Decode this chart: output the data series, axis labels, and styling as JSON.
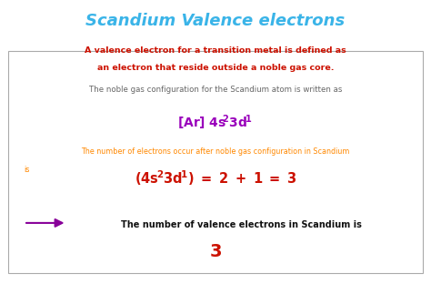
{
  "title": "Scandium Valence electrons",
  "title_color": "#3ab4e8",
  "title_fontsize": 13,
  "bg_color": "#ffffff",
  "box_bg": "#ffffff",
  "box_edge": "#aaaaaa",
  "line1": "A valence electron for a transition metal is defined as",
  "line2": "an electron that reside outside a noble gas core.",
  "line1_color": "#cc1100",
  "line1_fontsize": 6.8,
  "line3": "The noble gas configuration for the Scandium atom is written as",
  "line3_color": "#666666",
  "line3_fontsize": 6.2,
  "config1_color": "#9900bb",
  "config1_fontsize": 10,
  "line4a": "The number of electrons occur after noble gas configuration in Scandium",
  "line4b": "is",
  "line4_color": "#ff8800",
  "line4_fontsize": 5.8,
  "config2_color": "#cc1100",
  "config2_fontsize": 10.5,
  "arrow_color": "#880099",
  "line5": "The number of valence electrons in Scandium is",
  "line5_color": "#111111",
  "line5_fontsize": 7.0,
  "answer": "3",
  "answer_color": "#cc1100",
  "answer_fontsize": 14
}
